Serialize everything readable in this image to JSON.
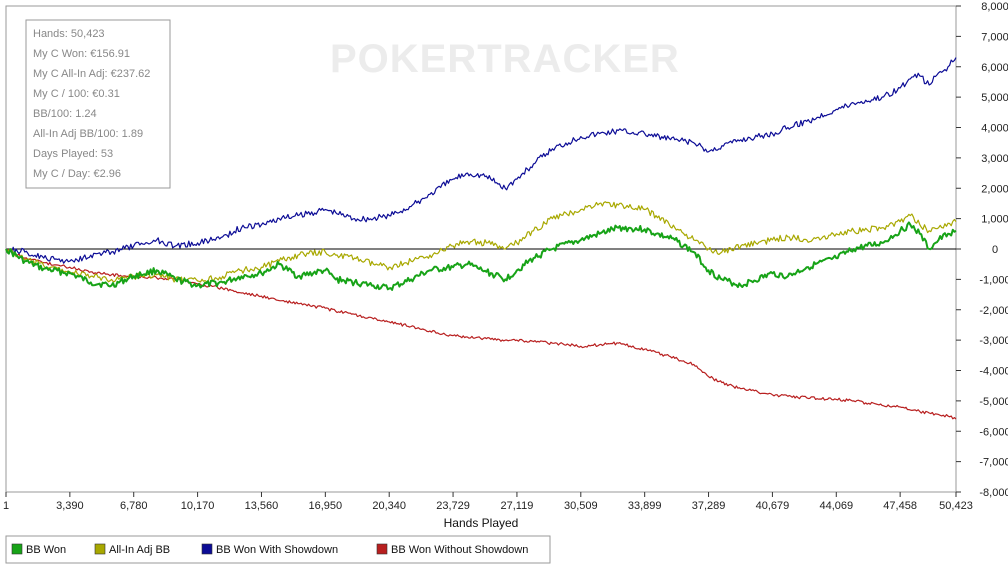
{
  "watermark": "POKERTRACKER",
  "stats": [
    "Hands: 50,423",
    "My C Won: €156.91",
    "My C All-In Adj: €237.62",
    "My C / 100: €0.31",
    "BB/100: 1.24",
    "All-In Adj BB/100: 1.89",
    "Days Played: 53",
    "My C / Day: €2.96"
  ],
  "chart_data": {
    "type": "line",
    "title": "",
    "xlabel": "Hands Played",
    "ylabel": "",
    "xlim": [
      1,
      50423
    ],
    "ylim": [
      -8000,
      8000
    ],
    "grid": false,
    "legend_position": "bottom-left",
    "x_ticks": [
      {
        "value": 1,
        "label": "1"
      },
      {
        "value": 3390,
        "label": "3,390"
      },
      {
        "value": 6780,
        "label": "6,780"
      },
      {
        "value": 10170,
        "label": "10,170"
      },
      {
        "value": 13560,
        "label": "13,560"
      },
      {
        "value": 16950,
        "label": "16,950"
      },
      {
        "value": 20340,
        "label": "20,340"
      },
      {
        "value": 23729,
        "label": "23,729"
      },
      {
        "value": 27119,
        "label": "27,119"
      },
      {
        "value": 30509,
        "label": "30,509"
      },
      {
        "value": 33899,
        "label": "33,899"
      },
      {
        "value": 37289,
        "label": "37,289"
      },
      {
        "value": 40679,
        "label": "40,679"
      },
      {
        "value": 44069,
        "label": "44,069"
      },
      {
        "value": 47458,
        "label": "47,458"
      },
      {
        "value": 50423,
        "label": "50,423"
      }
    ],
    "y_ticks": [
      {
        "value": 8000,
        "label": "8,000"
      },
      {
        "value": 7000,
        "label": "7,000"
      },
      {
        "value": 6000,
        "label": "6,000"
      },
      {
        "value": 5000,
        "label": "5,000"
      },
      {
        "value": 4000,
        "label": "4,000"
      },
      {
        "value": 3000,
        "label": "3,000"
      },
      {
        "value": 2000,
        "label": "2,000"
      },
      {
        "value": 1000,
        "label": "1,000"
      },
      {
        "value": 0,
        "label": "0"
      },
      {
        "value": -1000,
        "label": "-1,000"
      },
      {
        "value": -2000,
        "label": "-2,000"
      },
      {
        "value": -3000,
        "label": "-3,000"
      },
      {
        "value": -4000,
        "label": "-4,000"
      },
      {
        "value": -5000,
        "label": "-5,000"
      },
      {
        "value": -6000,
        "label": "-6,000"
      },
      {
        "value": -7000,
        "label": "-7,000"
      },
      {
        "value": -8000,
        "label": "-8,000"
      }
    ],
    "series": [
      {
        "name": "BB Won",
        "color": "#17a317",
        "x": [
          1,
          1000,
          2000,
          3390,
          4500,
          5600,
          6780,
          8000,
          9000,
          10170,
          11500,
          12500,
          13560,
          14500,
          15500,
          16950,
          17500,
          18500,
          19500,
          20340,
          21500,
          22500,
          23729,
          24500,
          25500,
          26500,
          27119,
          28000,
          29000,
          30509,
          31500,
          32500,
          33899,
          34500,
          35500,
          36500,
          37289,
          38000,
          39000,
          40679,
          41500,
          42500,
          44069,
          45000,
          46500,
          47458,
          48000,
          48500,
          49000,
          49500,
          50000,
          50423
        ],
        "values": [
          0,
          -400,
          -650,
          -800,
          -1100,
          -1200,
          -900,
          -700,
          -1000,
          -1200,
          -1100,
          -900,
          -800,
          -500,
          -900,
          -700,
          -1000,
          -1100,
          -1200,
          -1300,
          -1000,
          -700,
          -600,
          -500,
          -750,
          -1000,
          -700,
          -300,
          0,
          300,
          500,
          700,
          650,
          500,
          300,
          -100,
          -700,
          -1000,
          -1200,
          -800,
          -900,
          -600,
          -300,
          0,
          200,
          600,
          800,
          500,
          0,
          300,
          500,
          600
        ]
      },
      {
        "name": "All-In Adj BB",
        "color": "#a8a800",
        "x": [
          1,
          1000,
          2000,
          3390,
          4500,
          5600,
          6780,
          8000,
          9000,
          10170,
          11500,
          12500,
          13560,
          14500,
          15500,
          16950,
          17500,
          18500,
          19500,
          20340,
          21500,
          22500,
          23729,
          24500,
          25500,
          26500,
          27119,
          28000,
          29000,
          30509,
          31500,
          32500,
          33899,
          34500,
          35500,
          36500,
          37289,
          38000,
          39000,
          40679,
          41500,
          42500,
          44069,
          45000,
          46500,
          47458,
          48000,
          48500,
          49000,
          49500,
          50000,
          50423
        ],
        "values": [
          0,
          -350,
          -550,
          -750,
          -900,
          -1000,
          -900,
          -850,
          -1000,
          -1050,
          -900,
          -700,
          -600,
          -400,
          -200,
          -100,
          -200,
          -300,
          -500,
          -600,
          -400,
          -200,
          100,
          250,
          200,
          0,
          200,
          600,
          1000,
          1300,
          1500,
          1450,
          1300,
          1100,
          700,
          300,
          0,
          -100,
          100,
          300,
          400,
          300,
          500,
          600,
          700,
          900,
          1100,
          800,
          600,
          700,
          850,
          900
        ]
      },
      {
        "name": "BB Won With Showdown",
        "color": "#0c0c96",
        "x": [
          1,
          1000,
          2000,
          3390,
          4500,
          5600,
          6780,
          8000,
          9000,
          10170,
          11500,
          12500,
          13560,
          14500,
          15500,
          16950,
          17500,
          18500,
          19500,
          20340,
          21500,
          22500,
          23729,
          24500,
          25500,
          26500,
          27119,
          28000,
          29000,
          30509,
          31500,
          32500,
          33899,
          34500,
          35500,
          36500,
          37289,
          38000,
          39000,
          40679,
          41500,
          42500,
          44069,
          45000,
          46500,
          47458,
          48000,
          48500,
          49000,
          49500,
          50000,
          50423
        ],
        "values": [
          0,
          -100,
          -300,
          -400,
          -200,
          -100,
          100,
          300,
          100,
          200,
          400,
          700,
          800,
          1000,
          1100,
          1300,
          1200,
          1000,
          1000,
          1100,
          1400,
          1800,
          2300,
          2500,
          2400,
          2000,
          2300,
          2800,
          3300,
          3700,
          3800,
          3900,
          3800,
          3700,
          3600,
          3500,
          3200,
          3400,
          3600,
          3800,
          4000,
          4200,
          4600,
          4800,
          5000,
          5300,
          5600,
          5700,
          5400,
          5800,
          6000,
          6300
        ]
      },
      {
        "name": "BB Won Without Showdown",
        "color": "#b81f1f",
        "x": [
          1,
          1000,
          2000,
          3390,
          4500,
          5600,
          6780,
          8000,
          9000,
          10170,
          11500,
          12500,
          13560,
          14500,
          15500,
          16950,
          17500,
          18500,
          19500,
          20340,
          21500,
          22500,
          23729,
          24500,
          25500,
          26500,
          27119,
          28000,
          29000,
          30509,
          31500,
          32500,
          33899,
          34500,
          35500,
          36500,
          37289,
          38000,
          39000,
          40679,
          41500,
          42500,
          44069,
          45000,
          46500,
          47458,
          48000,
          48500,
          49000,
          49500,
          50000,
          50423
        ],
        "values": [
          0,
          -300,
          -450,
          -600,
          -750,
          -850,
          -900,
          -950,
          -1000,
          -1150,
          -1300,
          -1450,
          -1550,
          -1700,
          -1800,
          -1950,
          -2050,
          -2150,
          -2300,
          -2400,
          -2550,
          -2700,
          -2850,
          -2900,
          -2950,
          -3000,
          -3000,
          -3050,
          -3100,
          -3200,
          -3150,
          -3100,
          -3300,
          -3400,
          -3600,
          -3800,
          -4200,
          -4400,
          -4600,
          -4800,
          -4850,
          -4900,
          -4950,
          -5000,
          -5150,
          -5200,
          -5300,
          -5350,
          -5400,
          -5450,
          -5500,
          -5600
        ]
      }
    ]
  }
}
